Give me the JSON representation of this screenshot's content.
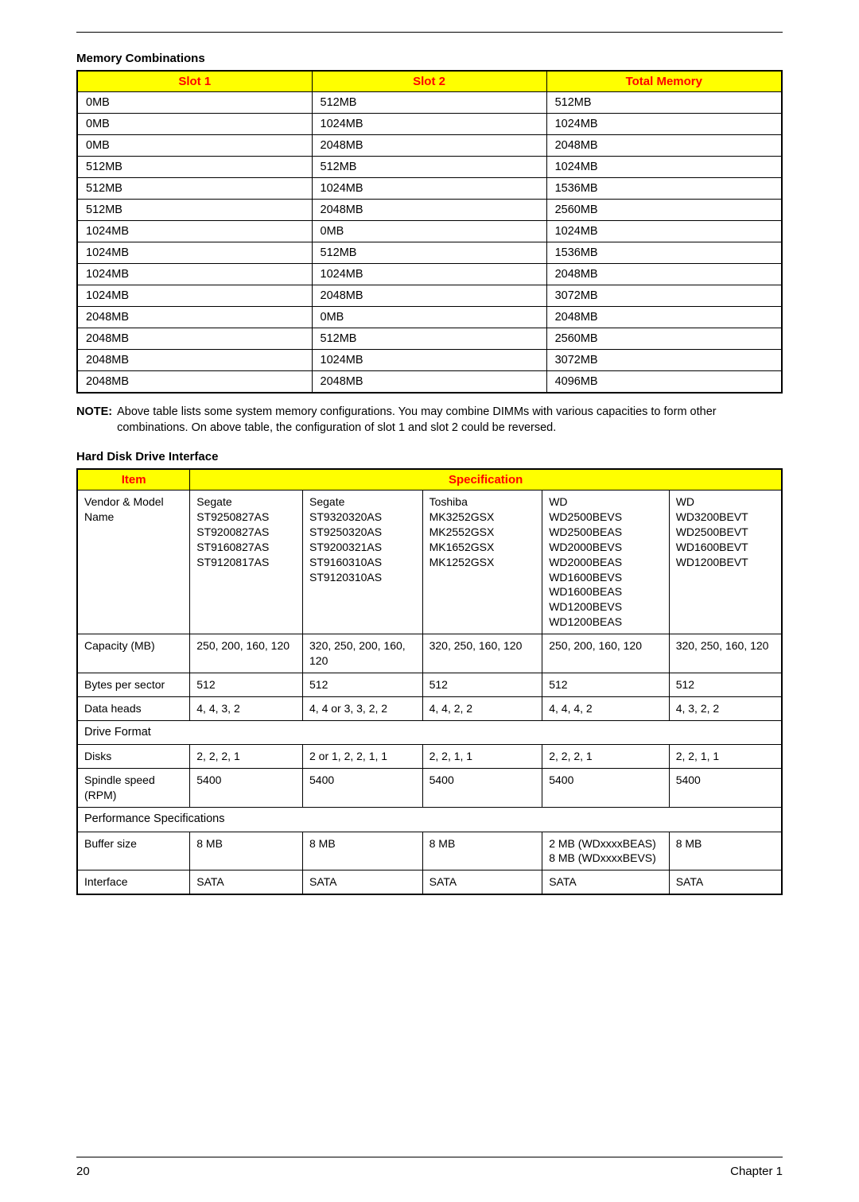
{
  "page": {
    "number": "20",
    "chapter": "Chapter 1"
  },
  "memory": {
    "title": "Memory Combinations",
    "headers": [
      "Slot 1",
      "Slot 2",
      "Total Memory"
    ],
    "col_widths": [
      "33.3%",
      "33.3%",
      "33.4%"
    ],
    "rows": [
      [
        "0MB",
        "512MB",
        "512MB"
      ],
      [
        "0MB",
        "1024MB",
        "1024MB"
      ],
      [
        "0MB",
        "2048MB",
        "2048MB"
      ],
      [
        "512MB",
        "512MB",
        "1024MB"
      ],
      [
        "512MB",
        "1024MB",
        "1536MB"
      ],
      [
        "512MB",
        "2048MB",
        "2560MB"
      ],
      [
        "1024MB",
        "0MB",
        "1024MB"
      ],
      [
        "1024MB",
        "512MB",
        "1536MB"
      ],
      [
        "1024MB",
        "1024MB",
        "2048MB"
      ],
      [
        "1024MB",
        "2048MB",
        "3072MB"
      ],
      [
        "2048MB",
        "0MB",
        "2048MB"
      ],
      [
        "2048MB",
        "512MB",
        "2560MB"
      ],
      [
        "2048MB",
        "1024MB",
        "3072MB"
      ],
      [
        "2048MB",
        "2048MB",
        "4096MB"
      ]
    ]
  },
  "note": {
    "label": "NOTE:",
    "text": "Above table lists some system memory configurations. You may combine DIMMs with various capacities to form other combinations. On above table, the configuration of slot 1 and slot 2 could be reversed."
  },
  "hdd": {
    "title": "Hard Disk Drive Interface",
    "item_header": "Item",
    "spec_header": "Specification",
    "col_widths": [
      "16%",
      "16%",
      "17%",
      "17%",
      "18%",
      "16%"
    ],
    "rows": [
      {
        "type": "data",
        "item": "Vendor & Model Name",
        "cells": [
          "Segate\nST9250827AS\nST9200827AS\nST9160827AS\nST9120817AS",
          "Segate\nST9320320AS\nST9250320AS\nST9200321AS\nST9160310AS\nST9120310AS",
          "Toshiba\nMK3252GSX\nMK2552GSX\nMK1652GSX\nMK1252GSX",
          "WD\nWD2500BEVS\nWD2500BEAS\nWD2000BEVS\nWD2000BEAS\nWD1600BEVS\nWD1600BEAS\nWD1200BEVS\nWD1200BEAS",
          "WD\nWD3200BEVT\nWD2500BEVT\nWD1600BEVT\nWD1200BEVT"
        ]
      },
      {
        "type": "data",
        "item": "Capacity (MB)",
        "cells": [
          "250, 200, 160, 120",
          "320, 250, 200, 160, 120",
          "320, 250, 160, 120",
          "250, 200, 160, 120",
          "320, 250, 160, 120"
        ]
      },
      {
        "type": "data",
        "item": "Bytes per sector",
        "cells": [
          "512",
          "512",
          "512",
          "512",
          "512"
        ]
      },
      {
        "type": "data",
        "item": "Data heads",
        "cells": [
          "4, 4, 3, 2",
          "4, 4 or 3, 3, 2, 2",
          "4, 4, 2, 2",
          "4, 4, 4, 2",
          "4, 3, 2, 2"
        ]
      },
      {
        "type": "section",
        "item": "Drive Format"
      },
      {
        "type": "data",
        "item": "Disks",
        "cells": [
          "2, 2, 2, 1",
          "2 or 1, 2, 2, 1, 1",
          "2, 2, 1, 1",
          "2, 2, 2, 1",
          "2, 2, 1, 1"
        ]
      },
      {
        "type": "data",
        "item": "Spindle speed (RPM)",
        "cells": [
          "5400",
          "5400",
          "5400",
          "5400",
          "5400"
        ]
      },
      {
        "type": "section",
        "item": "Performance Specifications"
      },
      {
        "type": "data",
        "item": "Buffer size",
        "cells": [
          "8 MB",
          "8 MB",
          "8 MB",
          "2 MB (WDxxxxBEAS)\n8 MB (WDxxxxBEVS)",
          "8 MB"
        ]
      },
      {
        "type": "data",
        "item": "Interface",
        "cells": [
          "SATA",
          "SATA",
          "SATA",
          "SATA",
          "SATA"
        ]
      }
    ]
  },
  "colors": {
    "header_bg": "#ffff00",
    "header_fg": "#ff0000",
    "rule": "#000000",
    "text": "#000000"
  },
  "typography": {
    "base_font": "Arial",
    "base_size_pt": 11,
    "title_weight": "bold"
  }
}
